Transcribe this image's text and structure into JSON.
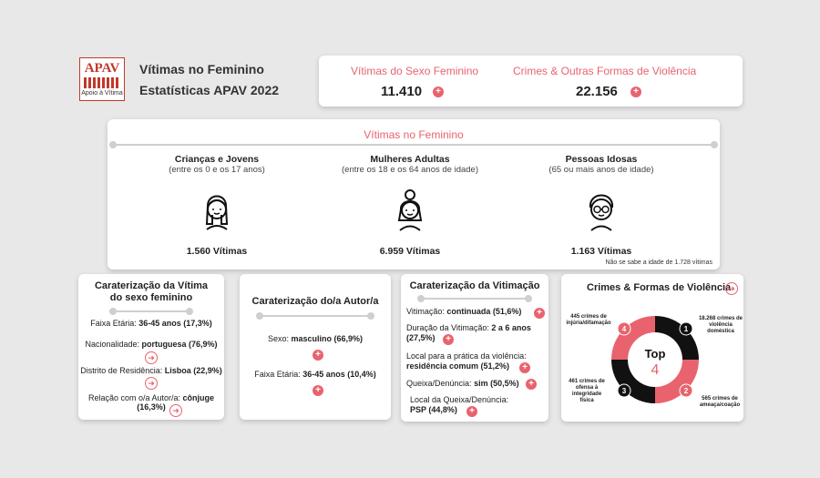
{
  "header": {
    "logo_text": "APAV",
    "logo_sub": "Apoio à Vítima",
    "title_line1": "Vítimas no Feminino",
    "title_line2": "Estatísticas APAV 2022"
  },
  "kpis": {
    "female_label": "Vítimas do Sexo Feminino",
    "female_value": "11.410",
    "crimes_label": "Crimes & Outras Formas de Violência",
    "crimes_value": "22.156",
    "plus": "+"
  },
  "groups": {
    "title": "Vítimas no Feminino",
    "items": [
      {
        "title": "Crianças e Jovens",
        "sub": "(entre os 0 e os 17 anos)",
        "count": "1.560 Vítimas"
      },
      {
        "title": "Mulheres Adultas",
        "sub": "(entre os 18 e os 64 anos de idade)",
        "count": "6.959 Vítimas"
      },
      {
        "title": "Pessoas Idosas",
        "sub": "(65 ou mais anos de idade)",
        "count": "1.163 Vítimas"
      }
    ],
    "note": "Não se sabe a idade de 1.728 vítimas"
  },
  "victim": {
    "title": "Caraterização da Vítima do sexo feminino",
    "age_label": "Faixa Etária:",
    "age_value": "36-45 anos (17,3%)",
    "nat_label": "Nacionalidade:",
    "nat_value": "portuguesa (76,9%)",
    "district_label": "Distrito de Residência:",
    "district_value": "Lisboa (22,9%)",
    "rel_label": "Relação com o/a Autor/a:",
    "rel_value": "cônjuge",
    "rel_pct": "(16,3%)"
  },
  "author": {
    "title": "Caraterização do/a Autor/a",
    "sex_label": "Sexo:",
    "sex_value": "masculino (66,9%)",
    "age_label": "Faixa Etária:",
    "age_value": "36-45 anos (10,4%)"
  },
  "victimization": {
    "title": "Caraterização da Vitimação",
    "v1_label": "Vitimação:",
    "v1_value": "continuada (51,6%)",
    "v2_label": "Duração da Vitimação:",
    "v2_value": "2 a 6 anos",
    "v2_pct": "(27,5%)",
    "v3_label": "Local para a prática da violência:",
    "v3_value": "residência comum (51,2%)",
    "v4_label": "Queixa/Denúncia:",
    "v4_value": "sim (50,5%)",
    "v5_label": "Local da Queixa/Denúncia:",
    "v5_value": "PSP (44,8%)"
  },
  "top": {
    "title": "Crimes & Formas de Violência",
    "center_label": "Top",
    "center_number": "4",
    "n1": "1",
    "n2": "2",
    "n3": "3",
    "n4": "4",
    "label1": "18.268 crimes de violência doméstica",
    "label2": "565 crimes de ameaça/coação",
    "label3": "461 crimes de ofensa à integridade física",
    "label4": "445 crimes de injúria/difamação"
  },
  "colors": {
    "accent": "#e8636e",
    "dark": "#111111"
  }
}
